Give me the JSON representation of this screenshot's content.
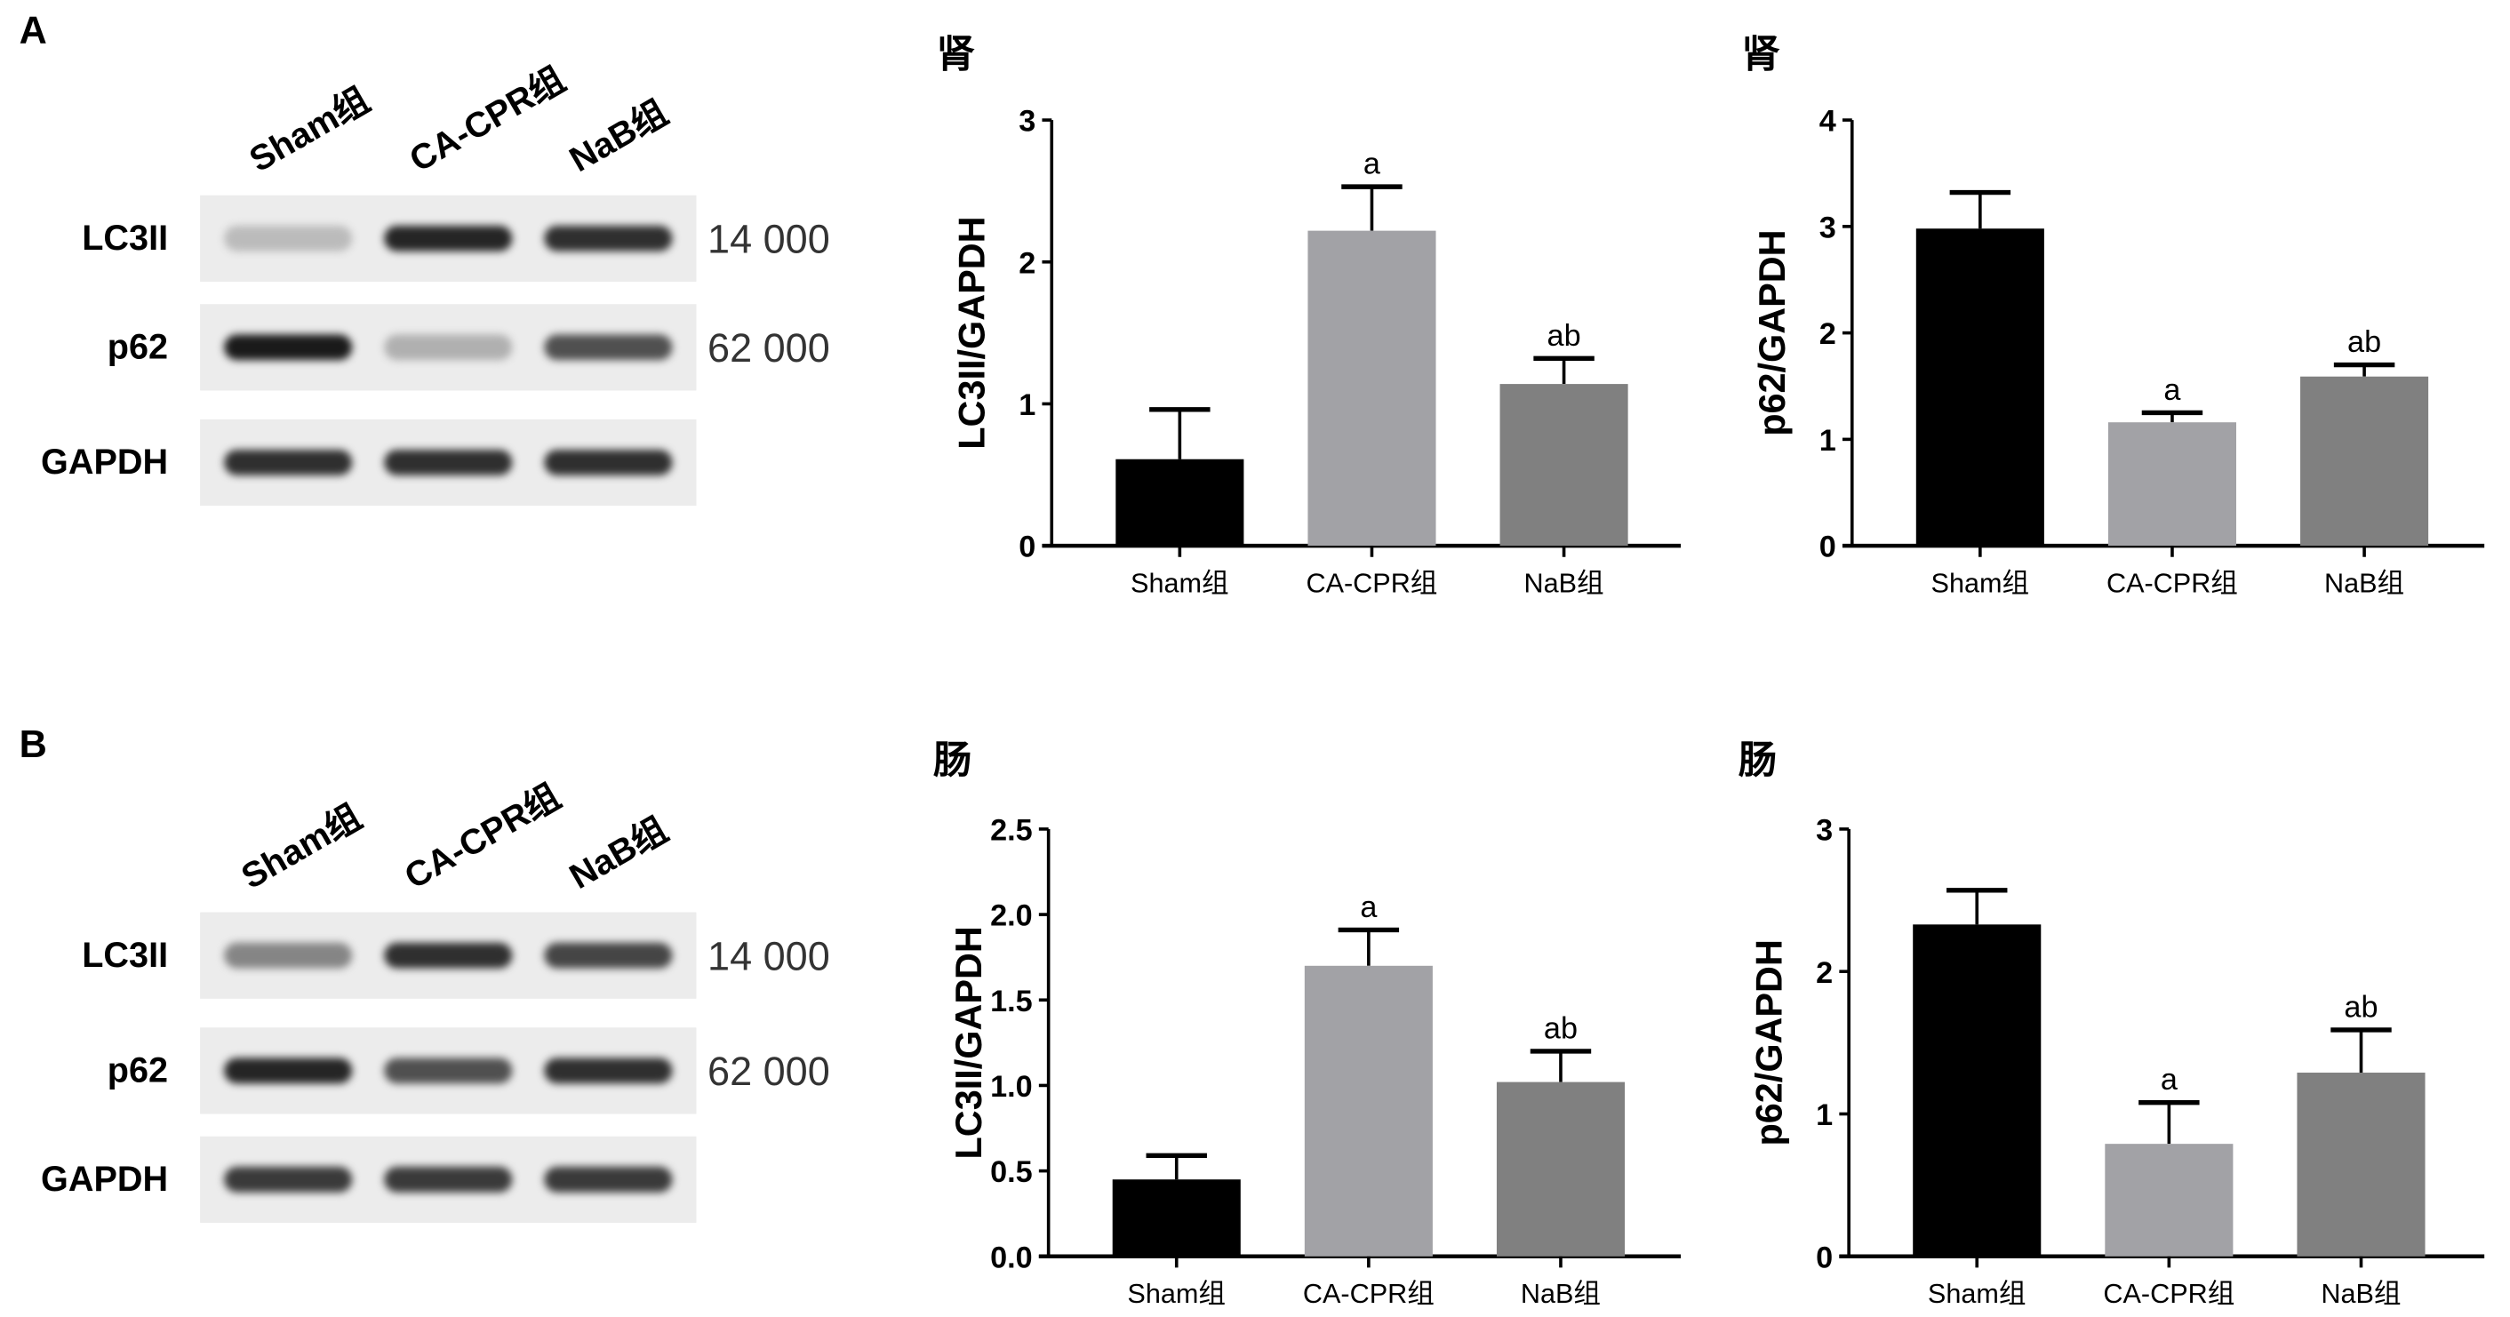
{
  "panels": [
    {
      "letter": "A",
      "lanes": [
        "Sham组",
        "CA-CPR组",
        "NaB组"
      ],
      "blots": [
        {
          "label": "LC3II",
          "mw": "14 000",
          "band_intensity": [
            0.2,
            0.9,
            0.85
          ]
        },
        {
          "label": "p62",
          "mw": "62 000",
          "band_intensity": [
            0.95,
            0.25,
            0.7
          ]
        },
        {
          "label": "GAPDH",
          "mw": "",
          "band_intensity": [
            0.85,
            0.85,
            0.85
          ]
        }
      ]
    },
    {
      "letter": "B",
      "lanes": [
        "Sham组",
        "CA-CPR组",
        "NaB组"
      ],
      "blots": [
        {
          "label": "LC3II",
          "mw": "14 000",
          "band_intensity": [
            0.45,
            0.85,
            0.75
          ]
        },
        {
          "label": "p62",
          "mw": "62 000",
          "band_intensity": [
            0.9,
            0.7,
            0.85
          ]
        },
        {
          "label": "GAPDH",
          "mw": "",
          "band_intensity": [
            0.8,
            0.8,
            0.8
          ]
        }
      ]
    }
  ],
  "colors": {
    "sham": "#000000",
    "cacpr": "#a2a2a6",
    "nab": "#808080"
  },
  "chart_data": [
    {
      "type": "bar",
      "title": "肾",
      "ylabel": "LC3II/GAPDH",
      "categories": [
        "Sham组",
        "CA-CPR组",
        "NaB组"
      ],
      "values": [
        0.61,
        2.22,
        1.14
      ],
      "errors": [
        0.35,
        0.31,
        0.18
      ],
      "annotations": [
        "",
        "a",
        "ab"
      ],
      "ylim": [
        0,
        3
      ],
      "yticks": [
        "0",
        "1",
        "2",
        "3"
      ],
      "ytick_values": [
        0,
        1,
        2,
        3
      ]
    },
    {
      "type": "bar",
      "title": "肾",
      "ylabel": "p62/GAPDH",
      "categories": [
        "Sham组",
        "CA-CPR组",
        "NaB组"
      ],
      "values": [
        2.98,
        1.16,
        1.59
      ],
      "errors": [
        0.34,
        0.09,
        0.11
      ],
      "annotations": [
        "",
        "a",
        "ab"
      ],
      "ylim": [
        0,
        4
      ],
      "yticks": [
        "0",
        "1",
        "2",
        "3",
        "4"
      ],
      "ytick_values": [
        0,
        1,
        2,
        3,
        4
      ]
    },
    {
      "type": "bar",
      "title": "肠",
      "ylabel": "LC3II/GAPDH",
      "categories": [
        "Sham组",
        "CA-CPR组",
        "NaB组"
      ],
      "values": [
        0.45,
        1.7,
        1.02
      ],
      "errors": [
        0.14,
        0.21,
        0.18
      ],
      "annotations": [
        "",
        "a",
        "ab"
      ],
      "ylim": [
        0,
        2.5
      ],
      "yticks": [
        "0.0",
        "0.5",
        "1.0",
        "1.5",
        "2.0",
        "2.5"
      ],
      "ytick_values": [
        0,
        0.5,
        1,
        1.5,
        2,
        2.5
      ]
    },
    {
      "type": "bar",
      "title": "肠",
      "ylabel": "p62/GAPDH",
      "categories": [
        "Sham组",
        "CA-CPR组",
        "NaB组"
      ],
      "values": [
        2.33,
        0.79,
        1.29
      ],
      "errors": [
        0.24,
        0.29,
        0.3
      ],
      "annotations": [
        "",
        "a",
        "ab"
      ],
      "ylim": [
        0,
        3
      ],
      "yticks": [
        "0",
        "1",
        "2",
        "3"
      ],
      "ytick_values": [
        0,
        1,
        2,
        3
      ]
    }
  ]
}
